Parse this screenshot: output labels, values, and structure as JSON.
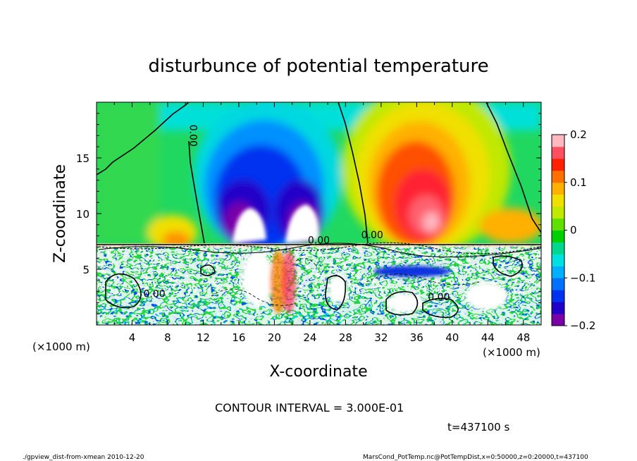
{
  "chart_data": {
    "type": "heatmap",
    "title": "disturbunce of potential temperature",
    "xlabel": "X-coordinate",
    "ylabel": "Z-coordinate",
    "x_unit": "(×1000 m)",
    "y_unit": "(×1000 m)",
    "x_ticks": [
      4,
      8,
      12,
      16,
      20,
      24,
      28,
      32,
      36,
      40,
      44,
      48
    ],
    "y_ticks": [
      5,
      10,
      15
    ],
    "xlim": [
      0,
      50
    ],
    "ylim": [
      0,
      20
    ],
    "colorbar": {
      "ticks": [
        "0.2",
        "0.1",
        "0",
        "−0.1",
        "−0.2"
      ],
      "tick_values": [
        0.2,
        0.1,
        0,
        -0.1,
        -0.2
      ],
      "range": [
        -0.2,
        0.2
      ],
      "colors": [
        "#7a00a8",
        "#2000c8",
        "#0030f0",
        "#0070ff",
        "#00b0ff",
        "#00e0e0",
        "#00d890",
        "#00d000",
        "#60e000",
        "#c0e800",
        "#f0e000",
        "#ffb000",
        "#ff7000",
        "#ff2000",
        "#ff5060",
        "#ffb8c0"
      ]
    },
    "contour_labels": [
      {
        "text": "0.00",
        "x": 10.5,
        "z": 17
      },
      {
        "text": "0.00",
        "x": 6.5,
        "z": 2.5
      },
      {
        "text": "0.00",
        "x": 25,
        "z": 7.3
      },
      {
        "text": "0.00",
        "x": 31,
        "z": 7.8
      },
      {
        "text": "0.00",
        "x": 38.5,
        "z": 2.2
      }
    ],
    "contour_interval": "CONTOUR INTERVAL = 3.000E-01",
    "time_label": "t=437100 s"
  },
  "footer": {
    "left": "./gpview_dist-from-xmean  2010-12-20",
    "right": "MarsCond_PotTemp.nc@PotTempDist,x=0:50000,z=0:20000,t=437100"
  }
}
